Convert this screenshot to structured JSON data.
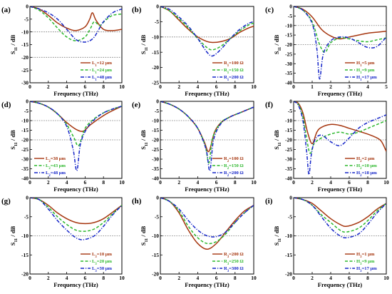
{
  "chart_data": [
    {
      "panel": "(a)",
      "type": "line",
      "xlabel": "Frequency (THz)",
      "ylabel": "S11 / dB",
      "xlim": [
        0,
        10
      ],
      "ylim": [
        -30,
        0
      ],
      "xticks": [
        0,
        2,
        4,
        6,
        8,
        10
      ],
      "yticks": [
        0,
        -5,
        -10,
        -15,
        -20,
        -25,
        -30
      ],
      "ref_lines": [
        -10,
        -20
      ],
      "legend_position": "lower-right",
      "series": [
        {
          "name": "L1=12 μm",
          "color": "#a6360f",
          "style": "solid",
          "x": [
            0,
            1,
            2,
            3,
            4,
            5,
            6,
            6.5,
            6.8,
            7.2,
            8,
            9,
            10
          ],
          "y": [
            0,
            -1,
            -3.5,
            -6.5,
            -8.5,
            -9.5,
            -8,
            -5,
            -2.5,
            -5.5,
            -9,
            -9.5,
            -9
          ]
        },
        {
          "name": "L1=24 μm",
          "color": "#2db82d",
          "style": "dash",
          "x": [
            0,
            1,
            2,
            3,
            4,
            5,
            6,
            6.6,
            7,
            7.6,
            8.2,
            9,
            10
          ],
          "y": [
            0,
            -1.5,
            -4.5,
            -8.5,
            -12,
            -13.5,
            -12,
            -8.5,
            -6,
            -7.5,
            -5.5,
            -3.5,
            -3
          ]
        },
        {
          "name": "L1=48 μm",
          "color": "#1626c8",
          "style": "dashdot",
          "x": [
            0,
            1,
            2,
            3,
            4,
            5,
            5.8,
            6.5,
            7,
            7.5,
            8,
            9,
            10
          ],
          "y": [
            0,
            -1,
            -2.5,
            -5,
            -9,
            -13,
            -14,
            -13.5,
            -12,
            -9,
            -6,
            -2.5,
            -1
          ]
        }
      ]
    },
    {
      "panel": "(b)",
      "type": "line",
      "xlabel": "Frequency (THz)",
      "ylabel": "S11 / dB",
      "xlim": [
        0,
        10
      ],
      "ylim": [
        -25,
        0
      ],
      "xticks": [
        0,
        2,
        4,
        6,
        8,
        10
      ],
      "yticks": [
        0,
        -5,
        -10,
        -15,
        -20,
        -25
      ],
      "ref_lines": [
        -10
      ],
      "legend_position": "lower-right",
      "series": [
        {
          "name": "R1=100 Ω",
          "color": "#a6360f",
          "style": "solid",
          "x": [
            0,
            1,
            2,
            3,
            4,
            5,
            5.6,
            6.5,
            7.5,
            8.5,
            9.5,
            10
          ],
          "y": [
            0,
            -1.5,
            -4.5,
            -7.5,
            -10,
            -11.5,
            -11.8,
            -11.5,
            -10.5,
            -8.5,
            -7,
            -6.5
          ]
        },
        {
          "name": "R1=150 Ω",
          "color": "#2db82d",
          "style": "dash",
          "x": [
            0,
            1,
            2,
            3,
            4,
            5,
            5.6,
            6.5,
            7.5,
            8.5,
            9.5,
            10
          ],
          "y": [
            0,
            -1.5,
            -4,
            -7,
            -10.5,
            -13.5,
            -14.2,
            -13,
            -10.5,
            -8,
            -6,
            -5.5
          ]
        },
        {
          "name": "R1=200 Ω",
          "color": "#1626c8",
          "style": "dashdot",
          "x": [
            0,
            1,
            2,
            3,
            4,
            5,
            5.6,
            6.5,
            7.5,
            8.5,
            9.5,
            10
          ],
          "y": [
            0,
            -1,
            -3.5,
            -6.5,
            -10.5,
            -15,
            -16.2,
            -14,
            -10.5,
            -7.5,
            -5.5,
            -5
          ]
        }
      ]
    },
    {
      "panel": "(c)",
      "type": "line",
      "xlabel": "Frequency (THz)",
      "ylabel": "S11 / dB",
      "xlim": [
        0,
        5
      ],
      "ylim": [
        -40,
        0
      ],
      "xticks": [
        0,
        1,
        2,
        3,
        4,
        5
      ],
      "yticks": [
        0,
        -5,
        -10,
        -15,
        -20,
        -25,
        -30,
        -35,
        -40
      ],
      "ref_lines": [
        -10,
        -20
      ],
      "legend_position": "lower-right",
      "series": [
        {
          "name": "H1=5 μm",
          "color": "#a6360f",
          "style": "solid",
          "x": [
            0,
            0.5,
            1,
            1.5,
            2,
            2.5,
            3,
            3.5,
            4,
            4.5,
            5
          ],
          "y": [
            0,
            -1.5,
            -5.5,
            -12,
            -15.5,
            -17,
            -16,
            -15,
            -14,
            -13.5,
            -13
          ]
        },
        {
          "name": "H1=9 μm",
          "color": "#2db82d",
          "style": "dash",
          "x": [
            0,
            0.5,
            1,
            1.4,
            1.7,
            2,
            2.5,
            3,
            3.5,
            4,
            4.5,
            5
          ],
          "y": [
            0,
            -2,
            -8,
            -20,
            -24,
            -19,
            -16.5,
            -17,
            -18,
            -18.5,
            -17.5,
            -16.5
          ]
        },
        {
          "name": "H1=17 μm",
          "color": "#1626c8",
          "style": "dashdot",
          "x": [
            0,
            0.5,
            1,
            1.25,
            1.4,
            1.6,
            2,
            2.5,
            3,
            3.5,
            4,
            4.5,
            5
          ],
          "y": [
            0,
            -2,
            -9,
            -22,
            -38,
            -25,
            -18,
            -16,
            -16.5,
            -19,
            -21.5,
            -21,
            -16
          ]
        }
      ]
    },
    {
      "panel": "(d)",
      "type": "line",
      "xlabel": "Frequency (THz)",
      "ylabel": "S11 / dB",
      "xlim": [
        0,
        10
      ],
      "ylim": [
        -40,
        0
      ],
      "xticks": [
        0,
        2,
        4,
        6,
        8,
        10
      ],
      "yticks": [
        0,
        -5,
        -10,
        -15,
        -20,
        -25,
        -30,
        -35,
        -40
      ],
      "ref_lines": [
        -10,
        -20
      ],
      "legend_position": "lower-left",
      "series": [
        {
          "name": "L2=38 μm",
          "color": "#a6360f",
          "style": "solid",
          "x": [
            0,
            1,
            2,
            3,
            4,
            5,
            5.8,
            6.5,
            7.5,
            8.5,
            10
          ],
          "y": [
            0,
            -1,
            -3,
            -6.5,
            -11,
            -14.5,
            -15.5,
            -12.5,
            -9,
            -6,
            -2.5
          ]
        },
        {
          "name": "L2=43 μm",
          "color": "#2db82d",
          "style": "dash",
          "x": [
            0,
            1,
            2,
            3,
            4,
            4.8,
            5.3,
            6,
            7,
            8,
            9,
            10
          ],
          "y": [
            0,
            -1,
            -3,
            -6.5,
            -12,
            -19,
            -23,
            -14,
            -9,
            -6,
            -4,
            -2.5
          ]
        },
        {
          "name": "L2=48 μm",
          "color": "#1626c8",
          "style": "dashdot",
          "x": [
            0,
            1,
            2,
            3,
            4,
            4.7,
            5.1,
            5.5,
            6.2,
            7,
            8,
            9,
            10
          ],
          "y": [
            0,
            -1,
            -3,
            -6.5,
            -13,
            -25,
            -36,
            -22,
            -14,
            -9.5,
            -6,
            -4,
            -2.5
          ]
        }
      ]
    },
    {
      "panel": "(e)",
      "type": "line",
      "xlabel": "Frequency (THz)",
      "ylabel": "S11 / dB",
      "xlim": [
        0,
        10
      ],
      "ylim": [
        -40,
        0
      ],
      "xticks": [
        0,
        2,
        4,
        6,
        8,
        10
      ],
      "yticks": [
        0,
        -5,
        -10,
        -15,
        -20,
        -25,
        -30,
        -35,
        -40
      ],
      "ref_lines": [
        -10,
        -20
      ],
      "legend_position": "lower-right",
      "series": [
        {
          "name": "R2=100 Ω",
          "color": "#a6360f",
          "style": "solid",
          "x": [
            0,
            1,
            2,
            3,
            4,
            4.7,
            5.2,
            5.8,
            6.5,
            7.5,
            8.5,
            10
          ],
          "y": [
            0,
            -1.5,
            -4,
            -8,
            -14,
            -21,
            -26,
            -16,
            -11,
            -8,
            -6,
            -3
          ]
        },
        {
          "name": "R2=150 Ω",
          "color": "#2db82d",
          "style": "dash",
          "x": [
            0,
            1,
            2,
            3,
            4,
            4.8,
            5.2,
            5.6,
            6.5,
            7.5,
            8.5,
            10
          ],
          "y": [
            0,
            -1.5,
            -4,
            -8,
            -14,
            -23,
            -32,
            -19,
            -11,
            -8,
            -6,
            -3
          ]
        },
        {
          "name": "R2=200 Ω",
          "color": "#1626c8",
          "style": "dashdot",
          "x": [
            0,
            1,
            2,
            3,
            4,
            4.9,
            5.3,
            5.7,
            6.5,
            7.5,
            8.5,
            10
          ],
          "y": [
            0,
            -1.5,
            -4,
            -8,
            -14,
            -25,
            -36,
            -20,
            -11.5,
            -8,
            -6,
            -3
          ]
        }
      ]
    },
    {
      "panel": "(f)",
      "type": "line",
      "xlabel": "Frequency (THz)",
      "ylabel": "S11 / dB",
      "xlim": [
        0,
        10
      ],
      "ylim": [
        -40,
        0
      ],
      "xticks": [
        0,
        2,
        4,
        6,
        8,
        10
      ],
      "yticks": [
        0,
        -5,
        -10,
        -15,
        -20,
        -25,
        -30,
        -35,
        -40
      ],
      "ref_lines": [
        -10,
        -20
      ],
      "legend_position": "lower-right",
      "series": [
        {
          "name": "H2=2 μm",
          "color": "#a6360f",
          "style": "solid",
          "x": [
            0,
            0.5,
            1,
            1.5,
            2,
            2.5,
            3,
            4,
            5,
            6,
            7,
            8,
            9,
            9.5,
            10
          ],
          "y": [
            0,
            -1,
            -6,
            -16,
            -22,
            -16,
            -13.5,
            -12,
            -12.5,
            -14,
            -15.5,
            -17,
            -19,
            -21,
            -26
          ]
        },
        {
          "name": "H2=10 μm",
          "color": "#2db82d",
          "style": "dash",
          "x": [
            0,
            0.5,
            1,
            1.5,
            1.8,
            2.2,
            3,
            4,
            5,
            6,
            7,
            8,
            9,
            10
          ],
          "y": [
            0,
            -1.5,
            -8,
            -22,
            -27,
            -22,
            -19,
            -17,
            -16,
            -17,
            -16,
            -14,
            -12,
            -10
          ]
        },
        {
          "name": "H2=18 μm",
          "color": "#1626c8",
          "style": "dashdot",
          "x": [
            0,
            0.5,
            1,
            1.4,
            1.65,
            1.9,
            2.3,
            3,
            4,
            5,
            6,
            7,
            8,
            9,
            10
          ],
          "y": [
            0,
            -2,
            -10,
            -26,
            -38,
            -28,
            -20,
            -17.5,
            -21,
            -23,
            -19,
            -14,
            -11,
            -9,
            -7
          ]
        }
      ]
    },
    {
      "panel": "(g)",
      "type": "line",
      "xlabel": "Frequency (THz)",
      "ylabel": "S11 / dB",
      "xlim": [
        0,
        10
      ],
      "ylim": [
        -20,
        0
      ],
      "xticks": [
        0,
        2,
        4,
        6,
        8,
        10
      ],
      "yticks": [
        0,
        -5,
        -10,
        -15,
        -20
      ],
      "ref_lines": [
        -10
      ],
      "legend_position": "lower-right",
      "series": [
        {
          "name": "L3=10 μm",
          "color": "#a6360f",
          "style": "solid",
          "x": [
            0,
            1,
            2,
            3,
            4,
            5,
            6,
            7,
            8,
            9,
            10
          ],
          "y": [
            0,
            -0.5,
            -2,
            -4,
            -5.5,
            -6.5,
            -6.8,
            -6.5,
            -5.5,
            -3.8,
            -2
          ]
        },
        {
          "name": "L3=20 μm",
          "color": "#2db82d",
          "style": "dash",
          "x": [
            0,
            1,
            2,
            3,
            4,
            5,
            6,
            7,
            8,
            9,
            10
          ],
          "y": [
            0,
            -0.5,
            -2.5,
            -5,
            -7,
            -8.5,
            -8.8,
            -8.2,
            -6.5,
            -4.2,
            -2
          ]
        },
        {
          "name": "L3=30 μm",
          "color": "#1626c8",
          "style": "dashdot",
          "x": [
            0,
            1,
            2,
            3,
            4,
            5,
            5.8,
            7,
            8,
            9,
            10
          ],
          "y": [
            0,
            -0.5,
            -3,
            -6,
            -8.5,
            -10.5,
            -11,
            -10,
            -7.5,
            -4.5,
            -2
          ]
        }
      ]
    },
    {
      "panel": "(h)",
      "type": "line",
      "xlabel": "Frequency (THz)",
      "ylabel": "S11 / dB",
      "xlim": [
        0,
        10
      ],
      "ylim": [
        -20,
        0
      ],
      "xticks": [
        0,
        2,
        4,
        6,
        8,
        10
      ],
      "yticks": [
        0,
        -5,
        -10,
        -15,
        -20
      ],
      "ref_lines": [
        -10
      ],
      "legend_position": "lower-right",
      "series": [
        {
          "name": "R3=200 Ω",
          "color": "#a6360f",
          "style": "solid",
          "x": [
            0,
            1,
            2,
            3,
            4,
            5,
            6,
            7,
            8,
            9,
            10
          ],
          "y": [
            0,
            -1,
            -4,
            -8.5,
            -12,
            -13.5,
            -12,
            -9,
            -6,
            -3.5,
            -2
          ]
        },
        {
          "name": "R3=250 Ω",
          "color": "#2db82d",
          "style": "dash",
          "x": [
            0,
            1,
            2,
            3,
            4,
            5,
            6,
            7,
            8,
            9,
            10
          ],
          "y": [
            0,
            -1,
            -3.5,
            -7.5,
            -10.5,
            -12,
            -11.5,
            -9.5,
            -6.5,
            -4,
            -2
          ]
        },
        {
          "name": "R3=300 Ω",
          "color": "#1626c8",
          "style": "dashdot",
          "x": [
            0,
            1,
            2,
            3,
            4,
            5,
            6,
            7,
            8,
            9,
            10
          ],
          "y": [
            0,
            -1,
            -3,
            -6,
            -8.5,
            -10,
            -10.2,
            -9,
            -6.5,
            -4,
            -2
          ]
        }
      ]
    },
    {
      "panel": "(i)",
      "type": "line",
      "xlabel": "Frequency (THz)",
      "ylabel": "S11 / dB",
      "xlim": [
        0,
        10
      ],
      "ylim": [
        -20,
        0
      ],
      "xticks": [
        0,
        2,
        4,
        6,
        8,
        10
      ],
      "yticks": [
        0,
        -5,
        -10,
        -15,
        -20
      ],
      "ref_lines": [
        -10
      ],
      "legend_position": "lower-right",
      "series": [
        {
          "name": "H3=1 μm",
          "color": "#a6360f",
          "style": "solid",
          "x": [
            0,
            1,
            2,
            3,
            4,
            5,
            5.7,
            7,
            8,
            9,
            10
          ],
          "y": [
            0,
            -0.5,
            -1.5,
            -3.5,
            -5.5,
            -7,
            -7.5,
            -6.5,
            -5,
            -3,
            -1.5
          ]
        },
        {
          "name": "H3=9 μm",
          "color": "#2db82d",
          "style": "dash",
          "x": [
            0,
            1,
            2,
            3,
            4,
            5,
            5.7,
            7,
            8,
            9,
            10
          ],
          "y": [
            0,
            -0.5,
            -2,
            -4.5,
            -6.5,
            -8.5,
            -9,
            -8,
            -6,
            -3.5,
            -1.5
          ]
        },
        {
          "name": "H3=17 μm",
          "color": "#1626c8",
          "style": "dashdot",
          "x": [
            0,
            1,
            2,
            3,
            4,
            5,
            5.7,
            7,
            8,
            9,
            10
          ],
          "y": [
            0,
            -0.5,
            -2,
            -5,
            -8,
            -10,
            -10.5,
            -9.5,
            -7,
            -4,
            -1.5
          ]
        }
      ]
    }
  ]
}
